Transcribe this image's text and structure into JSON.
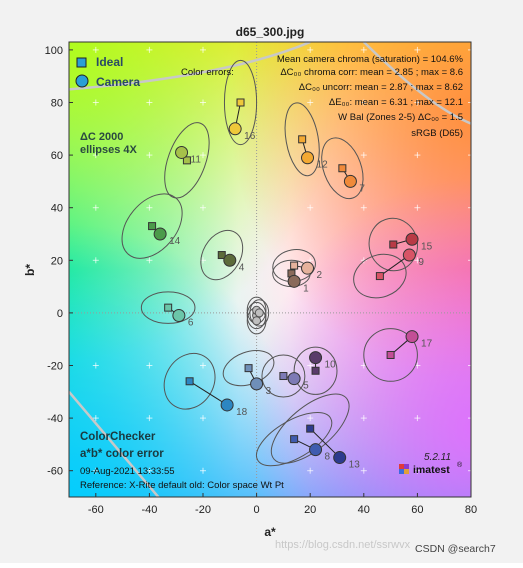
{
  "window": {
    "title": "d65_300.jpg",
    "watermark": "https://blog.csdn.net/ssrwvx",
    "watermark2": "CSDN @search7"
  },
  "colors": {
    "ideal_marker": "#2a9fd6",
    "camera_marker": "#2a9fd6",
    "ellipse": "#555555",
    "boundary": "#c8c8c8"
  },
  "legend": {
    "ideal_label": "Ideal",
    "camera_label": "Camera",
    "metric_line1": "ΔC 2000",
    "metric_line2": "ellipses 4X"
  },
  "stats": {
    "line1": "Mean camera chroma (saturation) = 104.6%",
    "line2_prefix": "Color errors:",
    "line2": "ΔC₀₀ chroma corr:  mean = 2.85 ;  max = 8.6",
    "line3": "ΔC₀₀ uncorr:  mean = 2.87 ;  max = 8.62",
    "line4": "ΔE₀₀:  mean = 6.31 ;  max = 12.1",
    "line5": "W Bal (Zones 2-5)  ΔC₀₀ = 1.5",
    "line6": "sRGB (D65)"
  },
  "bottom_text": {
    "title1": "ColorChecker",
    "title2": "a*b* color error",
    "timestamp": "09-Aug-2021 13:33:55",
    "reference": "Reference: X-Rite default old: Color space Wt Pt",
    "version": "5.2.11",
    "brand": "imatest"
  },
  "chart_data": {
    "type": "scatter",
    "title": "d65_300.jpg",
    "xlabel": "a*",
    "ylabel": "b*",
    "xlim": [
      -70,
      80
    ],
    "ylim": [
      -70,
      103
    ],
    "xticks": [
      -60,
      -40,
      -20,
      0,
      20,
      40,
      60,
      80
    ],
    "yticks": [
      -60,
      -40,
      -20,
      0,
      20,
      40,
      60,
      80,
      100
    ],
    "patches": [
      {
        "id": "1",
        "ideal": [
          13,
          15
        ],
        "camera": [
          14,
          12
        ],
        "color": "#8a6a5a",
        "ell": {
          "rx": 7,
          "ry": 5,
          "rot": 0
        }
      },
      {
        "id": "2",
        "ideal": [
          14,
          18
        ],
        "camera": [
          19,
          17
        ],
        "color": "#e6b29c",
        "ell": {
          "rx": 8,
          "ry": 6,
          "rot": -10
        }
      },
      {
        "id": "3",
        "ideal": [
          -3,
          -21
        ],
        "camera": [
          0,
          -27
        ],
        "color": "#6f8fb8",
        "ell": {
          "rx": 6,
          "ry": 10,
          "rot": 70
        }
      },
      {
        "id": "4",
        "ideal": [
          -13,
          22
        ],
        "camera": [
          -10,
          20
        ],
        "color": "#5c6b3a",
        "ell": {
          "rx": 7,
          "ry": 10,
          "rot": 30
        }
      },
      {
        "id": "5",
        "ideal": [
          10,
          -24
        ],
        "camera": [
          14,
          -25
        ],
        "color": "#7d7ab5",
        "ell": {
          "rx": 8,
          "ry": 8,
          "rot": 0
        }
      },
      {
        "id": "6",
        "ideal": [
          -33,
          2
        ],
        "camera": [
          -29,
          -1
        ],
        "color": "#6bc6a9",
        "ell": {
          "rx": 10,
          "ry": 6,
          "rot": 0
        }
      },
      {
        "id": "7",
        "ideal": [
          32,
          55
        ],
        "camera": [
          35,
          50
        ],
        "color": "#f08a3a",
        "ell": {
          "rx": 7,
          "ry": 12,
          "rot": -20
        }
      },
      {
        "id": "8",
        "ideal": [
          14,
          -48
        ],
        "camera": [
          22,
          -52
        ],
        "color": "#3f5caf",
        "ell": {
          "rx": 7,
          "ry": 16,
          "rot": 60
        }
      },
      {
        "id": "9",
        "ideal": [
          46,
          14
        ],
        "camera": [
          57,
          22
        ],
        "color": "#d85466",
        "ell": {
          "rx": 10,
          "ry": 8,
          "rot": -20
        }
      },
      {
        "id": "10",
        "ideal": [
          22,
          -22
        ],
        "camera": [
          22,
          -17
        ],
        "color": "#5a3b6a",
        "ell": {
          "rx": 8,
          "ry": 9,
          "rot": 0
        }
      },
      {
        "id": "11",
        "ideal": [
          -26,
          58
        ],
        "camera": [
          -28,
          61
        ],
        "color": "#a6c14a",
        "ell": {
          "rx": 7,
          "ry": 15,
          "rot": 20
        }
      },
      {
        "id": "12",
        "ideal": [
          17,
          66
        ],
        "camera": [
          19,
          59
        ],
        "color": "#f4a933",
        "ell": {
          "rx": 6,
          "ry": 14,
          "rot": -10
        }
      },
      {
        "id": "13",
        "ideal": [
          20,
          -44
        ],
        "camera": [
          31,
          -55
        ],
        "color": "#2c3b8e",
        "ell": {
          "rx": 8,
          "ry": 18,
          "rot": 50
        }
      },
      {
        "id": "14",
        "ideal": [
          -39,
          33
        ],
        "camera": [
          -36,
          30
        ],
        "color": "#4b9a4a",
        "ell": {
          "rx": 9,
          "ry": 14,
          "rot": 40
        }
      },
      {
        "id": "15",
        "ideal": [
          51,
          26
        ],
        "camera": [
          58,
          28
        ],
        "color": "#b83a45",
        "ell": {
          "rx": 9,
          "ry": 10,
          "rot": -10
        }
      },
      {
        "id": "16",
        "ideal": [
          -6,
          80
        ],
        "camera": [
          -8,
          70
        ],
        "color": "#efc83a",
        "ell": {
          "rx": 6,
          "ry": 16,
          "rot": 0
        }
      },
      {
        "id": "17",
        "ideal": [
          50,
          -16
        ],
        "camera": [
          58,
          -9
        ],
        "color": "#c24e96",
        "ell": {
          "rx": 10,
          "ry": 10,
          "rot": 0
        }
      },
      {
        "id": "18",
        "ideal": [
          -25,
          -26
        ],
        "camera": [
          -11,
          -35
        ],
        "color": "#2c86c2",
        "ell": {
          "rx": 9,
          "ry": 11,
          "rot": 30
        }
      }
    ],
    "neutrals": [
      [
        0,
        -1
      ],
      [
        0,
        1
      ],
      [
        1,
        0
      ],
      [
        0,
        -3
      ]
    ]
  }
}
